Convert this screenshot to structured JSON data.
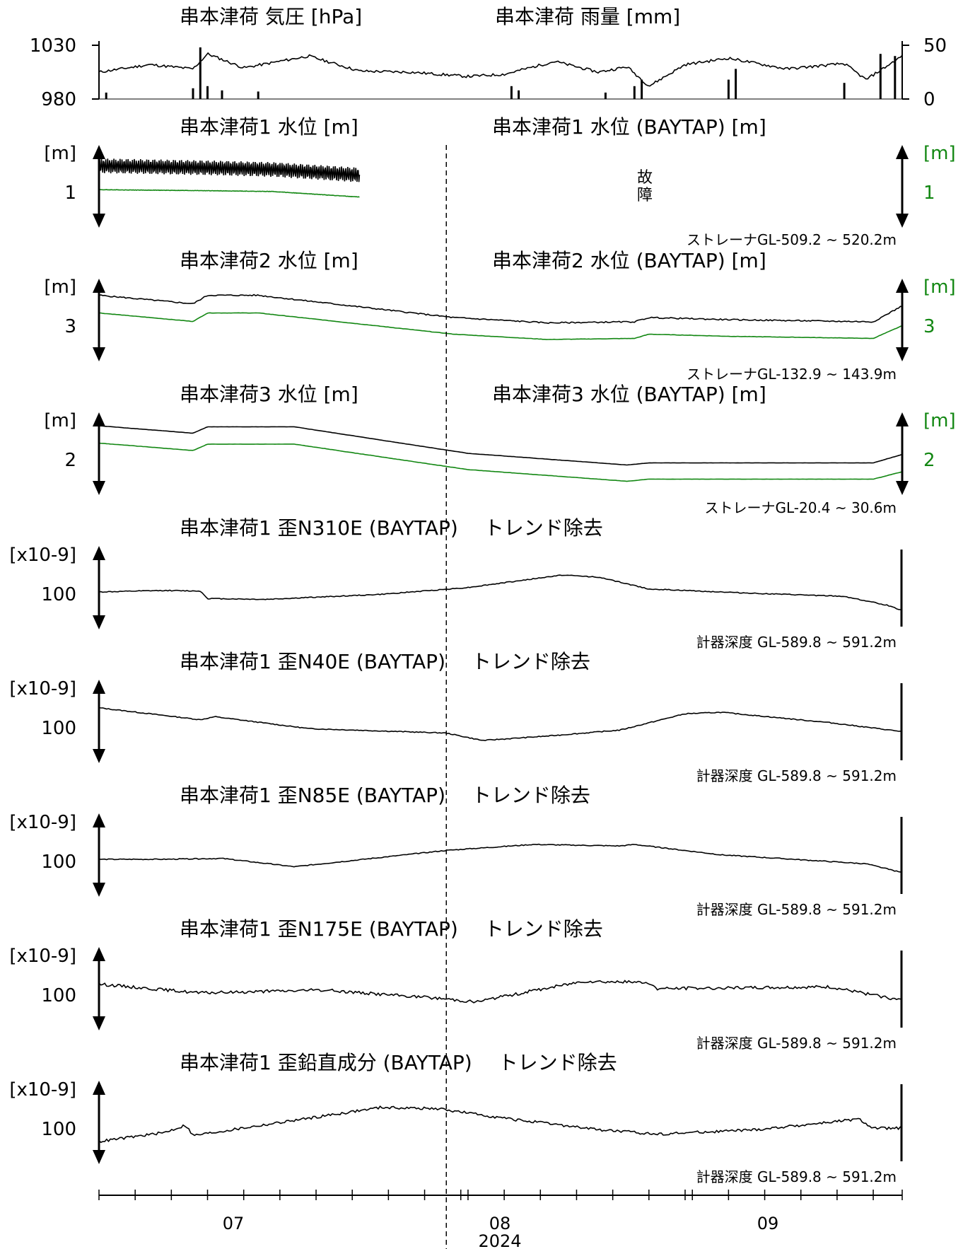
{
  "colors": {
    "primary": "#000000",
    "baytap": "#128712"
  },
  "x_axis": {
    "labels": [
      "07",
      "08",
      "09"
    ],
    "year": "2024"
  },
  "panels": {
    "pressure_rain": {
      "left_title": "串本津荷 気圧 [hPa]",
      "right_title": "串本津荷 雨量 [mm]",
      "left_ticks": [
        "1030",
        "980"
      ],
      "right_ticks": [
        "50",
        "0"
      ]
    },
    "water1": {
      "left_title": "串本津荷1 水位 [m]",
      "right_title": "串本津荷1 水位 (BAYTAP) [m]",
      "unit": "[m]",
      "scale": "1",
      "note": "ストレーナGL-509.2 ~ 520.2m",
      "fault": [
        "故",
        "障"
      ]
    },
    "water2": {
      "left_title": "串本津荷2 水位 [m]",
      "right_title": "串本津荷2 水位 (BAYTAP) [m]",
      "unit": "[m]",
      "scale": "3",
      "note": "ストレーナGL-132.9 ~ 143.9m"
    },
    "water3": {
      "left_title": "串本津荷3 水位 [m]",
      "right_title": "串本津荷3 水位 (BAYTAP) [m]",
      "unit": "[m]",
      "scale": "2",
      "note": "ストレーナGL-20.4 ~ 30.6m"
    },
    "strain_n310e": {
      "title": "串本津荷1 歪N310E (BAYTAP)　 トレンド除去",
      "unit": "[x10-9]",
      "scale": "100",
      "note": "計器深度 GL-589.8 ~ 591.2m"
    },
    "strain_n40e": {
      "title": "串本津荷1 歪N40E (BAYTAP)　 トレンド除去",
      "unit": "[x10-9]",
      "scale": "100",
      "note": "計器深度 GL-589.8 ~ 591.2m"
    },
    "strain_n85e": {
      "title": "串本津荷1 歪N85E (BAYTAP)　 トレンド除去",
      "unit": "[x10-9]",
      "scale": "100",
      "note": "計器深度 GL-589.8 ~ 591.2m"
    },
    "strain_n175e": {
      "title": "串本津荷1 歪N175E (BAYTAP)　 トレンド除去",
      "unit": "[x10-9]",
      "scale": "100",
      "note": "計器深度 GL-589.8 ~ 591.2m"
    },
    "strain_vertical": {
      "title": "串本津荷1 歪鉛直成分 (BAYTAP)　 トレンド除去",
      "unit": "[x10-9]",
      "scale": "100",
      "note": "計器深度 GL-589.8 ~ 591.2m"
    }
  },
  "chart_data": {
    "type": "line",
    "x_range": [
      "2024-06-11",
      "2024-09-30"
    ],
    "marker_date": "2024-07-29",
    "series": [
      {
        "name": "串本津荷 気圧 [hPa]",
        "unit": "hPa",
        "ylim": [
          980,
          1030
        ],
        "x": [
          "2024-06-11",
          "2024-06-18",
          "2024-06-24",
          "2024-06-26",
          "2024-07-01",
          "2024-07-10",
          "2024-07-17",
          "2024-07-24",
          "2024-08-01",
          "2024-08-06",
          "2024-08-13",
          "2024-08-19",
          "2024-08-23",
          "2024-08-26",
          "2024-08-31",
          "2024-09-06",
          "2024-09-14",
          "2024-09-22",
          "2024-09-25",
          "2024-09-30"
        ],
        "y": [
          1005,
          1012,
          1008,
          1022,
          1009,
          1020,
          1006,
          1005,
          1001,
          1003,
          1015,
          1005,
          1010,
          992,
          1012,
          1018,
          1008,
          1013,
          998,
          1020
        ]
      },
      {
        "name": "串本津荷 雨量 [mm]",
        "unit": "mm",
        "ylim": [
          0,
          50
        ],
        "style": "bars",
        "x": [
          "2024-06-12",
          "2024-06-24",
          "2024-06-25",
          "2024-06-26",
          "2024-06-28",
          "2024-07-03",
          "2024-08-07",
          "2024-08-08",
          "2024-08-20",
          "2024-08-24",
          "2024-08-25",
          "2024-09-06",
          "2024-09-07",
          "2024-09-22",
          "2024-09-27",
          "2024-09-29"
        ],
        "values": [
          6,
          10,
          48,
          12,
          8,
          7,
          12,
          8,
          6,
          12,
          18,
          18,
          28,
          15,
          42,
          40
        ]
      },
      {
        "name": "串本津荷1 水位 [m]",
        "unit": "m",
        "status": "故障 after 2024-07-17",
        "x": [
          "2024-06-11",
          "2024-06-25",
          "2024-07-05",
          "2024-07-17"
        ],
        "y": [
          1.22,
          1.2,
          1.18,
          1.12
        ]
      },
      {
        "name": "串本津荷1 水位 (BAYTAP) [m]",
        "unit": "m",
        "x": [
          "2024-06-11",
          "2024-06-25",
          "2024-07-05",
          "2024-07-17"
        ],
        "y": [
          1.06,
          1.05,
          1.04,
          0.98
        ]
      },
      {
        "name": "串本津荷2 水位 [m]",
        "unit": "m",
        "x": [
          "2024-06-11",
          "2024-06-24",
          "2024-06-26",
          "2024-07-03",
          "2024-07-30",
          "2024-08-12",
          "2024-08-24",
          "2024-08-26",
          "2024-09-06",
          "2024-09-26",
          "2024-09-30"
        ],
        "y": [
          3.3,
          3.22,
          3.3,
          3.3,
          3.09,
          3.04,
          3.05,
          3.09,
          3.07,
          3.05,
          3.2
        ]
      },
      {
        "name": "串本津荷2 水位 (BAYTAP) [m]",
        "unit": "m",
        "x": [
          "2024-06-11",
          "2024-06-24",
          "2024-06-26",
          "2024-07-03",
          "2024-07-30",
          "2024-08-12",
          "2024-08-24",
          "2024-08-26",
          "2024-09-06",
          "2024-09-26",
          "2024-09-30"
        ],
        "y": [
          3.18,
          3.1,
          3.18,
          3.18,
          2.98,
          2.93,
          2.94,
          2.98,
          2.96,
          2.94,
          3.06
        ]
      },
      {
        "name": "串本津荷3 水位 [m]",
        "unit": "m",
        "x": [
          "2024-06-11",
          "2024-06-24",
          "2024-06-26",
          "2024-07-08",
          "2024-08-01",
          "2024-08-23",
          "2024-08-26",
          "2024-09-26",
          "2024-09-30"
        ],
        "y": [
          2.35,
          2.28,
          2.34,
          2.34,
          2.09,
          1.98,
          2.0,
          2.0,
          2.08
        ]
      },
      {
        "name": "串本津荷3 水位 (BAYTAP) [m]",
        "unit": "m",
        "x": [
          "2024-06-11",
          "2024-06-24",
          "2024-06-26",
          "2024-07-08",
          "2024-08-01",
          "2024-08-23",
          "2024-08-26",
          "2024-09-26",
          "2024-09-30"
        ],
        "y": [
          2.22,
          2.15,
          2.21,
          2.21,
          1.97,
          1.86,
          1.88,
          1.88,
          1.95
        ]
      },
      {
        "name": "串本津荷1 歪N310E (BAYTAP) トレンド除去",
        "unit": "x10-9",
        "x": [
          "2024-06-11",
          "2024-06-20",
          "2024-06-25",
          "2024-06-26",
          "2024-07-04",
          "2024-07-20",
          "2024-08-01",
          "2024-08-14",
          "2024-08-19",
          "2024-08-26",
          "2024-09-10",
          "2024-09-22",
          "2024-09-28",
          "2024-09-30"
        ],
        "y": [
          100,
          105,
          103,
          78,
          75,
          92,
          115,
          157,
          150,
          110,
          95,
          85,
          55,
          38
        ]
      },
      {
        "name": "串本津荷1 歪N40E (BAYTAP) トレンド除去",
        "unit": "x10-9",
        "x": [
          "2024-06-11",
          "2024-06-25",
          "2024-06-27",
          "2024-07-10",
          "2024-07-29",
          "2024-08-03",
          "2024-08-12",
          "2024-08-22",
          "2024-08-31",
          "2024-09-05",
          "2024-09-20",
          "2024-09-30"
        ],
        "y": [
          160,
          120,
          130,
          90,
          75,
          50,
          65,
          85,
          140,
          145,
          110,
          80
        ]
      },
      {
        "name": "串本津荷1 歪N85E (BAYTAP) トレンド除去",
        "unit": "x10-9",
        "x": [
          "2024-06-11",
          "2024-06-20",
          "2024-06-28",
          "2024-07-08",
          "2024-07-29",
          "2024-08-10",
          "2024-08-22",
          "2024-08-24",
          "2024-09-05",
          "2024-09-25",
          "2024-09-30"
        ],
        "y": [
          100,
          100,
          103,
          75,
          130,
          150,
          145,
          150,
          115,
          85,
          55
        ]
      },
      {
        "name": "串本津荷1 歪N175E (BAYTAP) トレンド除去",
        "unit": "x10-9",
        "x": [
          "2024-06-11",
          "2024-06-25",
          "2024-07-12",
          "2024-07-29",
          "2024-08-02",
          "2024-08-17",
          "2024-08-26",
          "2024-08-27",
          "2024-09-20",
          "2024-09-30"
        ],
        "y": [
          130,
          100,
          110,
          80,
          70,
          140,
          135,
          115,
          120,
          75
        ]
      },
      {
        "name": "串本津荷1 歪鉛直成分 (BAYTAP) トレンド除去",
        "unit": "x10-9",
        "x": [
          "2024-06-11",
          "2024-06-20",
          "2024-06-23",
          "2024-06-24",
          "2024-07-20",
          "2024-07-28",
          "2024-08-07",
          "2024-08-19",
          "2024-08-27",
          "2024-09-10",
          "2024-09-24",
          "2024-09-26",
          "2024-09-30"
        ],
        "y": [
          50,
          80,
          105,
          70,
          165,
          160,
          125,
          90,
          75,
          90,
          125,
          95,
          95
        ]
      }
    ]
  }
}
